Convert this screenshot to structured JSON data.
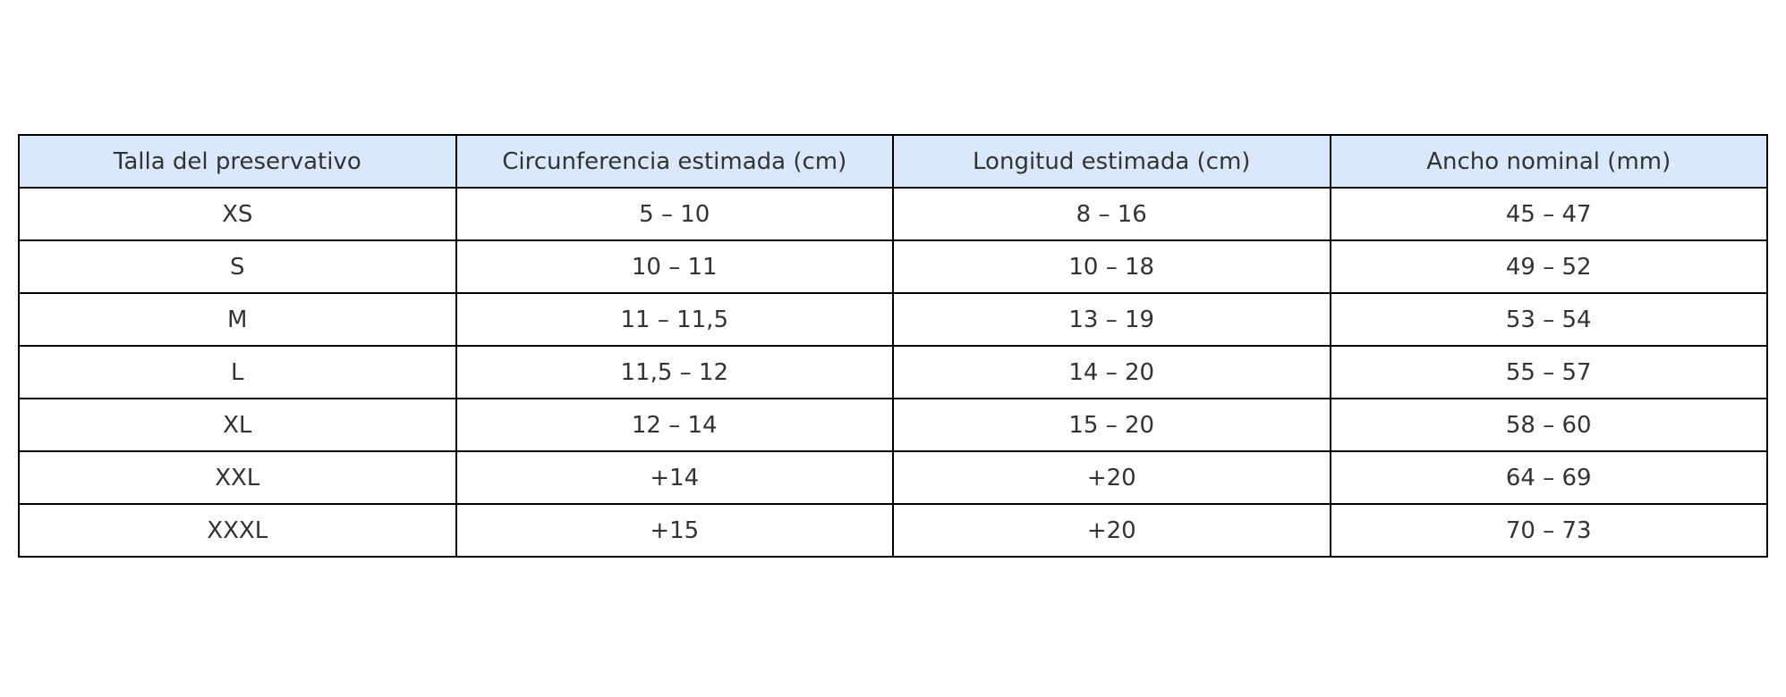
{
  "table": {
    "header": [
      "Talla del preservativo",
      "Circunferencia estimada (cm)",
      "Longitud estimada (cm)",
      "Ancho nominal (mm)"
    ],
    "rows": [
      [
        "XS",
        "5 – 10",
        "8 – 16",
        "45 – 47"
      ],
      [
        "S",
        "10 – 11",
        "10 – 18",
        "49 – 52"
      ],
      [
        "M",
        "11 – 11,5",
        "13 – 19",
        "53 – 54"
      ],
      [
        "L",
        "11,5 – 12",
        "14 – 20",
        "55 – 57"
      ],
      [
        "XL",
        "12 – 14",
        "15 – 20",
        "58 – 60"
      ],
      [
        "XXL",
        "+14",
        "+20",
        "64 – 69"
      ],
      [
        "XXXL",
        "+15",
        "+20",
        "70 – 73"
      ]
    ]
  }
}
